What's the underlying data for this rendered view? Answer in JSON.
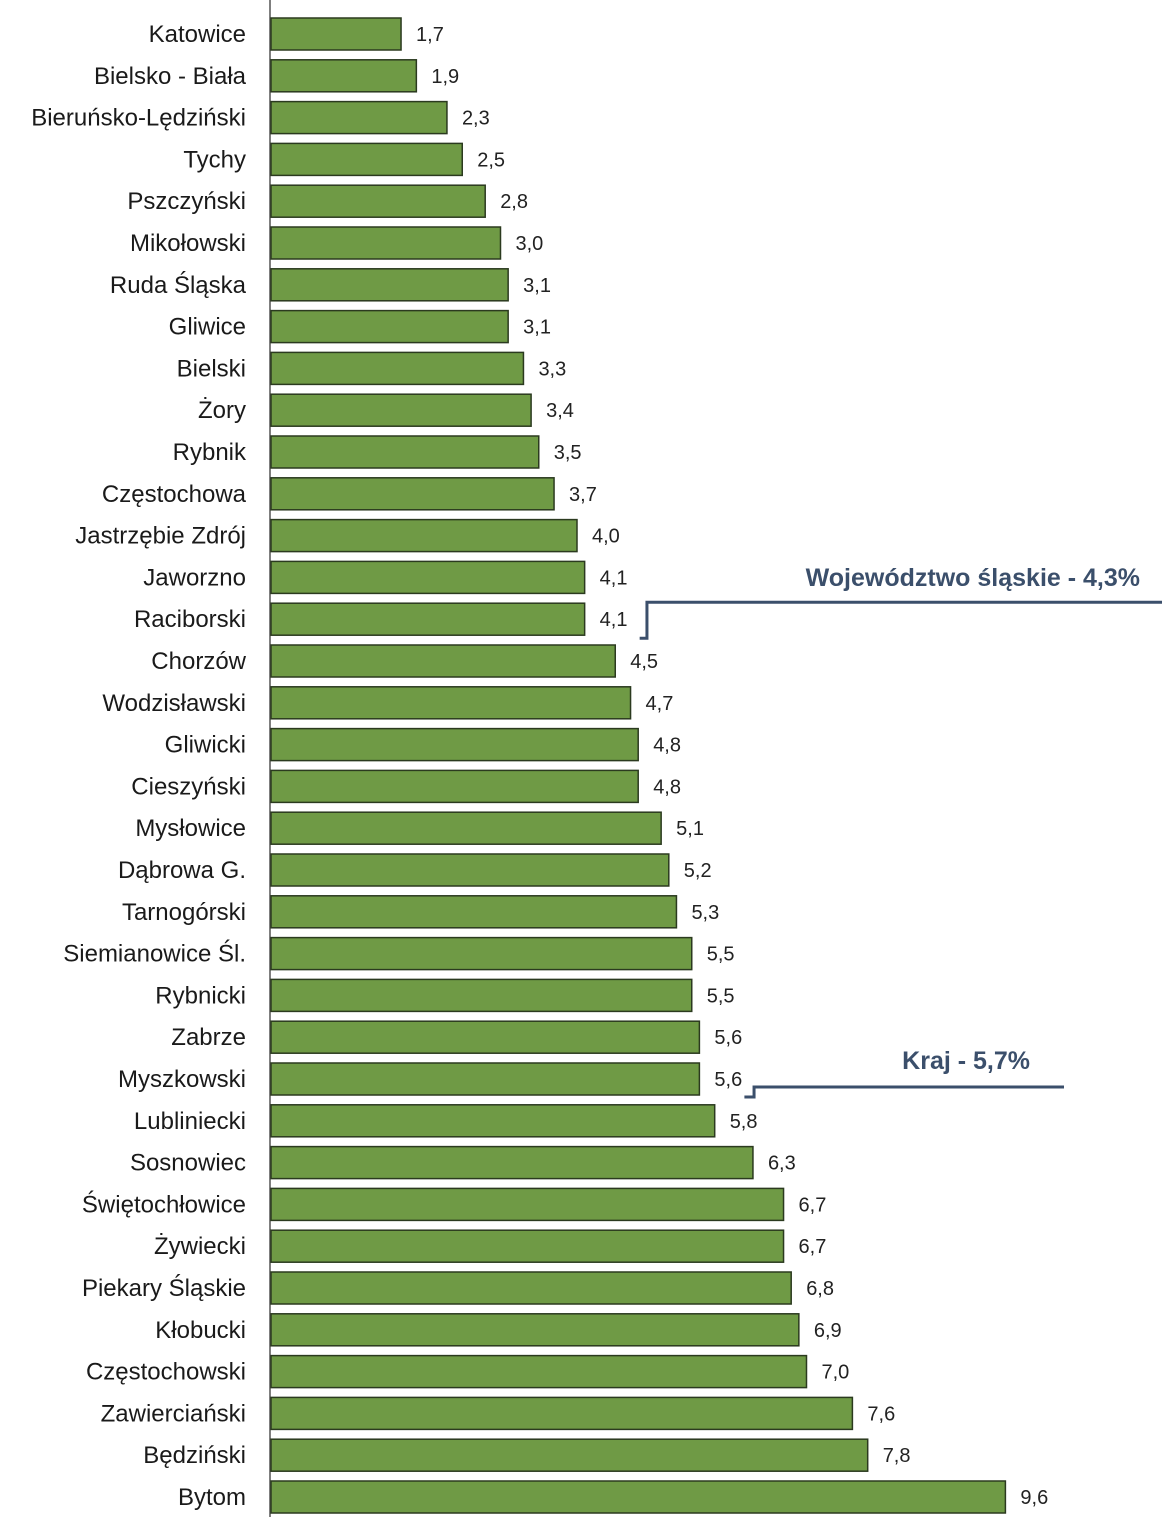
{
  "chart_data": {
    "type": "bar",
    "orientation": "horizontal",
    "categories": [
      "Katowice",
      "Bielsko - Biała",
      "Bieruńsko-Lędziński",
      "Tychy",
      "Pszczyński",
      "Mikołowski",
      "Ruda  Śląska",
      "Gliwice",
      "Bielski",
      "Żory",
      "Rybnik",
      "Częstochowa",
      "Jastrzębie Zdrój",
      "Jaworzno",
      "Raciborski",
      "Chorzów",
      "Wodzisławski",
      "Gliwicki",
      "Cieszyński",
      "Mysłowice",
      "Dąbrowa G.",
      "Tarnogórski",
      "Siemianowice Śl.",
      "Rybnicki",
      "Zabrze",
      "Myszkowski",
      "Lubliniecki",
      "Sosnowiec",
      "Świętochłowice",
      "Żywiecki",
      "Piekary Śląskie",
      "Kłobucki",
      "Częstochowski",
      "Zawierciański",
      "Będziński",
      "Bytom"
    ],
    "values": [
      1.7,
      1.9,
      2.3,
      2.5,
      2.8,
      3.0,
      3.1,
      3.1,
      3.3,
      3.4,
      3.5,
      3.7,
      4.0,
      4.1,
      4.1,
      4.5,
      4.7,
      4.8,
      4.8,
      5.1,
      5.2,
      5.3,
      5.5,
      5.5,
      5.6,
      5.6,
      5.8,
      6.3,
      6.7,
      6.7,
      6.8,
      6.9,
      7.0,
      7.6,
      7.8,
      9.6
    ],
    "value_labels": [
      "1,7",
      "1,9",
      "2,3",
      "2,5",
      "2,8",
      "3,0",
      "3,1",
      "3,1",
      "3,3",
      "3,4",
      "3,5",
      "3,7",
      "4,0",
      "4,1",
      "4,1",
      "4,5",
      "4,7",
      "4,8",
      "4,8",
      "5,1",
      "5,2",
      "5,3",
      "5,5",
      "5,5",
      "5,6",
      "5,6",
      "5,8",
      "6,3",
      "6,7",
      "6,7",
      "6,8",
      "6,9",
      "7,0",
      "7,6",
      "7,8",
      "9,6"
    ],
    "xlim": [
      0,
      9.6
    ],
    "grid": false,
    "bar_color": "#6f9a45",
    "bar_edge_color": "#2b3a1f",
    "reference_lines": [
      {
        "label": "Województwo śląskie - 4,3%",
        "value": 4.3,
        "after_category": "Raciborski",
        "color": "#3b4f6b"
      },
      {
        "label": "Kraj - 5,7%",
        "value": 5.7,
        "after_category": "Myszkowski",
        "color": "#3b4f6b"
      }
    ],
    "axis_color": "#555555"
  }
}
